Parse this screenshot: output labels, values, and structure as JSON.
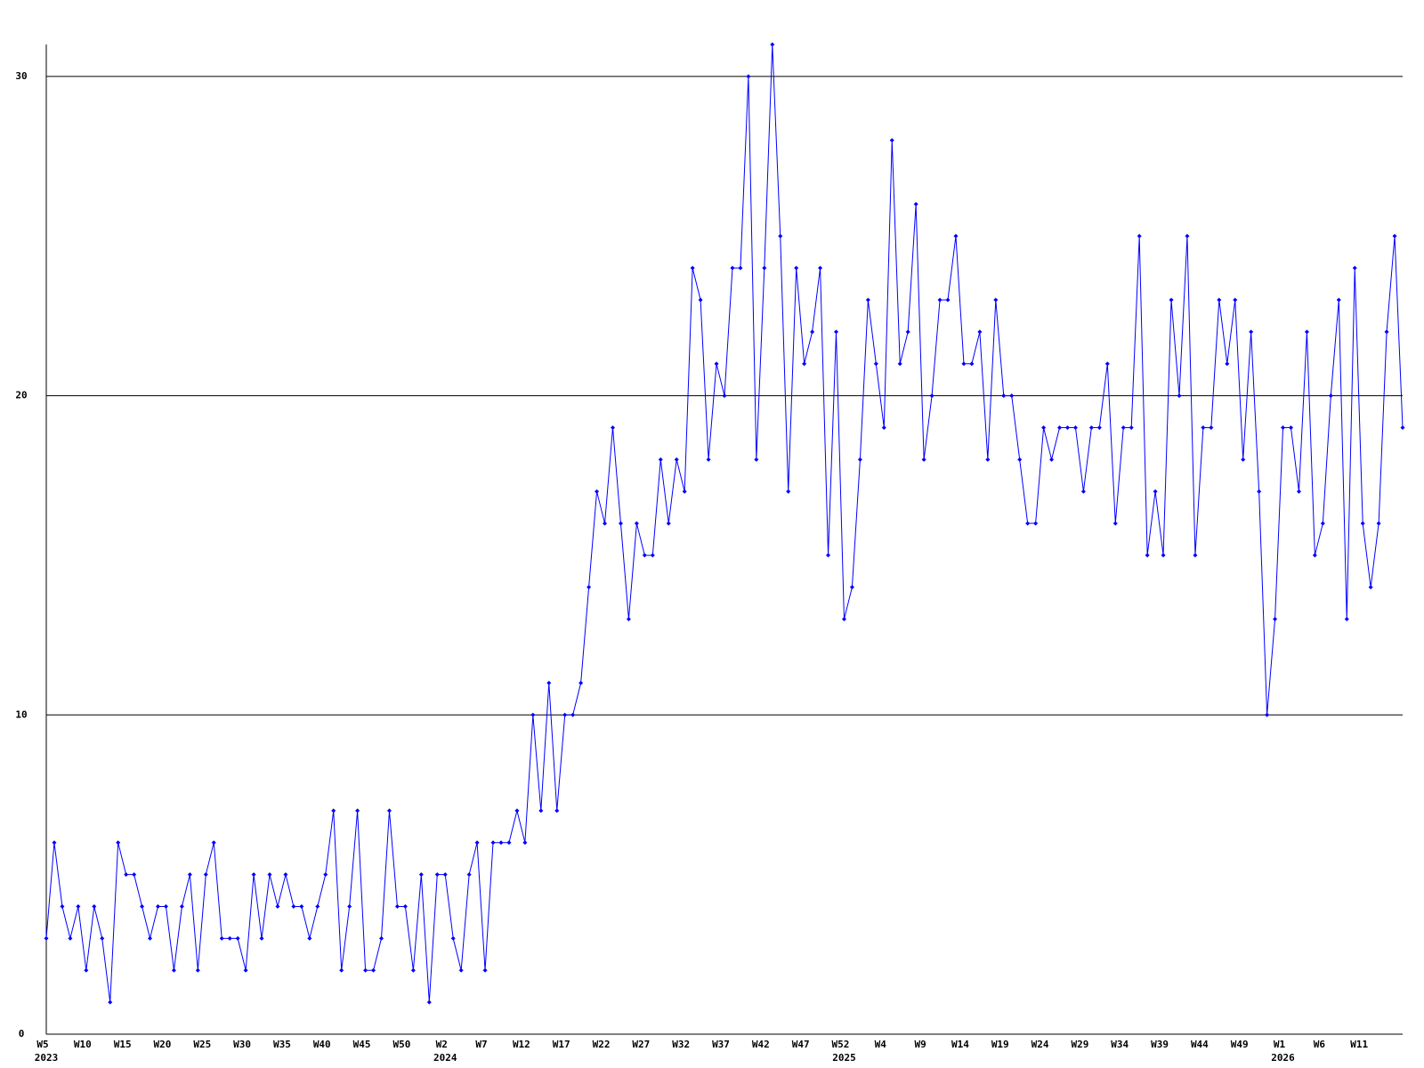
{
  "chart_data": {
    "type": "line",
    "categories": [
      "W5",
      null,
      null,
      null,
      null,
      "W10",
      null,
      null,
      null,
      null,
      "W15",
      null,
      null,
      null,
      null,
      "W20",
      null,
      null,
      null,
      null,
      "W25",
      null,
      null,
      null,
      null,
      "W30",
      null,
      null,
      null,
      null,
      "W35",
      null,
      null,
      null,
      null,
      "W40",
      null,
      null,
      null,
      null,
      "W45",
      null,
      null,
      null,
      null,
      "W50",
      null,
      null,
      null,
      null,
      "W2",
      null,
      null,
      null,
      null,
      "W7",
      null,
      null,
      null,
      null,
      "W12",
      null,
      null,
      null,
      null,
      "W17",
      null,
      null,
      null,
      null,
      "W22",
      null,
      null,
      null,
      null,
      "W27",
      null,
      null,
      null,
      null,
      "W32",
      null,
      null,
      null,
      null,
      "W37",
      null,
      null,
      null,
      null,
      "W42",
      null,
      null,
      null,
      null,
      "W47",
      null,
      null,
      null,
      null,
      "W52",
      null,
      null,
      null,
      null,
      "W4",
      null,
      null,
      null,
      null,
      "W9",
      null,
      null,
      null,
      null,
      "W14",
      null,
      null,
      null,
      null,
      "W19",
      null,
      null,
      null,
      null,
      "W24",
      null,
      null,
      null,
      null,
      "W29",
      null,
      null,
      null,
      null,
      "W34",
      null,
      null,
      null,
      null,
      "W39",
      null,
      null,
      null,
      null,
      "W44",
      null,
      null,
      null,
      null,
      "W49",
      null,
      null,
      null,
      null,
      "W1",
      null,
      null,
      null,
      null,
      "W6",
      null,
      null,
      null,
      null,
      "W11",
      null,
      null,
      null,
      null,
      null
    ],
    "category_years": [
      "2023",
      null,
      null,
      null,
      null,
      null,
      null,
      null,
      null,
      null,
      null,
      null,
      null,
      null,
      null,
      null,
      null,
      null,
      null,
      null,
      null,
      null,
      null,
      null,
      null,
      null,
      null,
      null,
      null,
      null,
      null,
      null,
      null,
      null,
      null,
      null,
      null,
      null,
      null,
      null,
      null,
      null,
      null,
      null,
      null,
      null,
      null,
      null,
      null,
      null,
      "2024",
      null,
      null,
      null,
      null,
      null,
      null,
      null,
      null,
      null,
      null,
      null,
      null,
      null,
      null,
      null,
      null,
      null,
      null,
      null,
      null,
      null,
      null,
      null,
      null,
      null,
      null,
      null,
      null,
      null,
      null,
      null,
      null,
      null,
      null,
      null,
      null,
      null,
      null,
      null,
      null,
      null,
      null,
      null,
      null,
      null,
      null,
      null,
      null,
      null,
      "2025",
      null,
      null,
      null,
      null,
      null,
      null,
      null,
      null,
      null,
      null,
      null,
      null,
      null,
      null,
      null,
      null,
      null,
      null,
      null,
      null,
      null,
      null,
      null,
      null,
      null,
      null,
      null,
      null,
      null,
      null,
      null,
      null,
      null,
      null,
      null,
      null,
      null,
      null,
      null,
      null,
      null,
      null,
      null,
      null,
      null,
      null,
      null,
      null,
      null,
      null,
      null,
      null,
      null,
      null,
      "2026",
      null,
      null,
      null,
      null,
      null,
      null,
      null,
      null,
      null,
      null,
      null,
      null,
      null,
      null,
      null
    ],
    "series": [
      {
        "color": "#0000ff",
        "values": [
          3,
          6,
          4,
          3,
          4,
          2,
          4,
          3,
          1,
          6,
          5,
          5,
          4,
          3,
          4,
          4,
          2,
          4,
          5,
          2,
          5,
          6,
          3,
          3,
          3,
          2,
          5,
          3,
          5,
          4,
          5,
          4,
          4,
          3,
          4,
          5,
          7,
          2,
          4,
          7,
          2,
          2,
          3,
          7,
          4,
          4,
          2,
          5,
          1,
          5,
          5,
          3,
          2,
          5,
          6,
          2,
          6,
          6,
          6,
          7,
          6,
          10,
          7,
          11,
          7,
          10,
          10,
          11,
          14,
          17,
          16,
          19,
          16,
          13,
          16,
          15,
          15,
          18,
          16,
          18,
          17,
          24,
          23,
          18,
          21,
          20,
          24,
          24,
          30,
          18,
          24,
          31,
          25,
          17,
          24,
          21,
          22,
          24,
          15,
          22,
          13,
          14,
          18,
          23,
          21,
          19,
          28,
          21,
          22,
          26,
          18,
          20,
          23,
          23,
          25,
          21,
          21,
          22,
          18,
          23,
          20,
          20,
          18,
          16,
          16,
          19,
          18,
          19,
          19,
          19,
          17,
          19,
          19,
          21,
          16,
          19,
          19,
          25,
          15,
          17,
          15,
          23,
          20,
          25,
          15,
          19,
          19,
          23,
          21,
          23,
          18,
          22,
          17,
          10,
          13,
          19,
          19,
          17,
          22,
          15,
          16,
          20,
          23,
          13,
          24,
          16,
          14,
          16,
          22,
          25,
          19
        ]
      }
    ],
    "ylim": [
      0,
      31
    ],
    "yticks": [
      0,
      10,
      20,
      30
    ],
    "grid": true
  }
}
